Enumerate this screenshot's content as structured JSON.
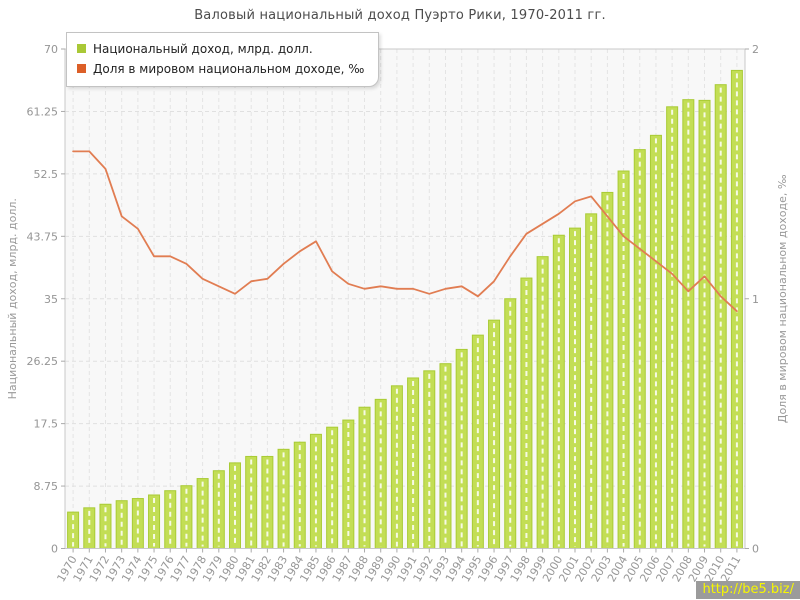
{
  "title": "Валовый национальный доход Пуэрто Рики, 1970-2011 гг.",
  "watermark": "http://be5.biz/",
  "legend": {
    "position": "top-left",
    "items": [
      {
        "label": "Национальный доход, млрд. долл.",
        "color": "#a9c836"
      },
      {
        "label": "Доля в мировом национальном доходе, ‰",
        "color": "#dc5f28"
      }
    ]
  },
  "chart_data": {
    "type": "bar",
    "title": "Валовый национальный доход Пуэрто Рики, 1970-2011 гг.",
    "categories": [
      "1970",
      "1971",
      "1972",
      "1973",
      "1974",
      "1975",
      "1976",
      "1977",
      "1978",
      "1979",
      "1980",
      "1981",
      "1982",
      "1983",
      "1984",
      "1985",
      "1986",
      "1987",
      "1988",
      "1989",
      "1990",
      "1991",
      "1992",
      "1993",
      "1994",
      "1995",
      "1996",
      "1997",
      "1998",
      "1999",
      "2000",
      "2001",
      "2002",
      "2003",
      "2004",
      "2005",
      "2006",
      "2007",
      "2008",
      "2009",
      "2010",
      "2011"
    ],
    "series": [
      {
        "name": "Национальный доход, млрд. долл.",
        "type": "bar",
        "axis": "left",
        "color": "#c3de55",
        "border_color": "#a9cb35",
        "values": [
          5.1,
          5.7,
          6.2,
          6.7,
          7.0,
          7.5,
          8.1,
          8.8,
          9.8,
          10.9,
          12.0,
          12.9,
          12.9,
          13.9,
          14.9,
          16.0,
          17.0,
          18.0,
          19.8,
          20.9,
          22.8,
          23.9,
          24.9,
          25.9,
          27.9,
          29.9,
          32.0,
          35.0,
          37.9,
          40.9,
          43.9,
          44.9,
          46.9,
          49.9,
          52.9,
          55.9,
          57.9,
          61.9,
          62.9,
          62.8,
          65.0,
          67.0
        ]
      },
      {
        "name": "Доля в мировом национальном доходе, ‰",
        "type": "line",
        "axis": "right",
        "color": "#e17d52",
        "values": [
          1.59,
          1.59,
          1.52,
          1.33,
          1.28,
          1.17,
          1.17,
          1.14,
          1.08,
          1.05,
          1.02,
          1.07,
          1.08,
          1.14,
          1.19,
          1.23,
          1.11,
          1.06,
          1.04,
          1.05,
          1.04,
          1.04,
          1.02,
          1.04,
          1.05,
          1.01,
          1.07,
          1.17,
          1.26,
          1.3,
          1.34,
          1.39,
          1.41,
          1.33,
          1.25,
          1.2,
          1.15,
          1.1,
          1.03,
          1.09,
          1.01,
          0.95
        ]
      }
    ],
    "left_axis": {
      "label": "Национальный доход, млрд. долл.",
      "ticks": [
        "0",
        "8.75",
        "17.5",
        "26.25",
        "35",
        "43.75",
        "52.5",
        "61.25",
        "70"
      ],
      "range": [
        0,
        70
      ]
    },
    "right_axis": {
      "label": "Доля в мировом национальном доходе, ‰",
      "ticks": [
        "0",
        "1",
        "2"
      ],
      "range": [
        0,
        2
      ]
    },
    "xlabel": "",
    "grid": true,
    "legend_position": "top-left"
  }
}
